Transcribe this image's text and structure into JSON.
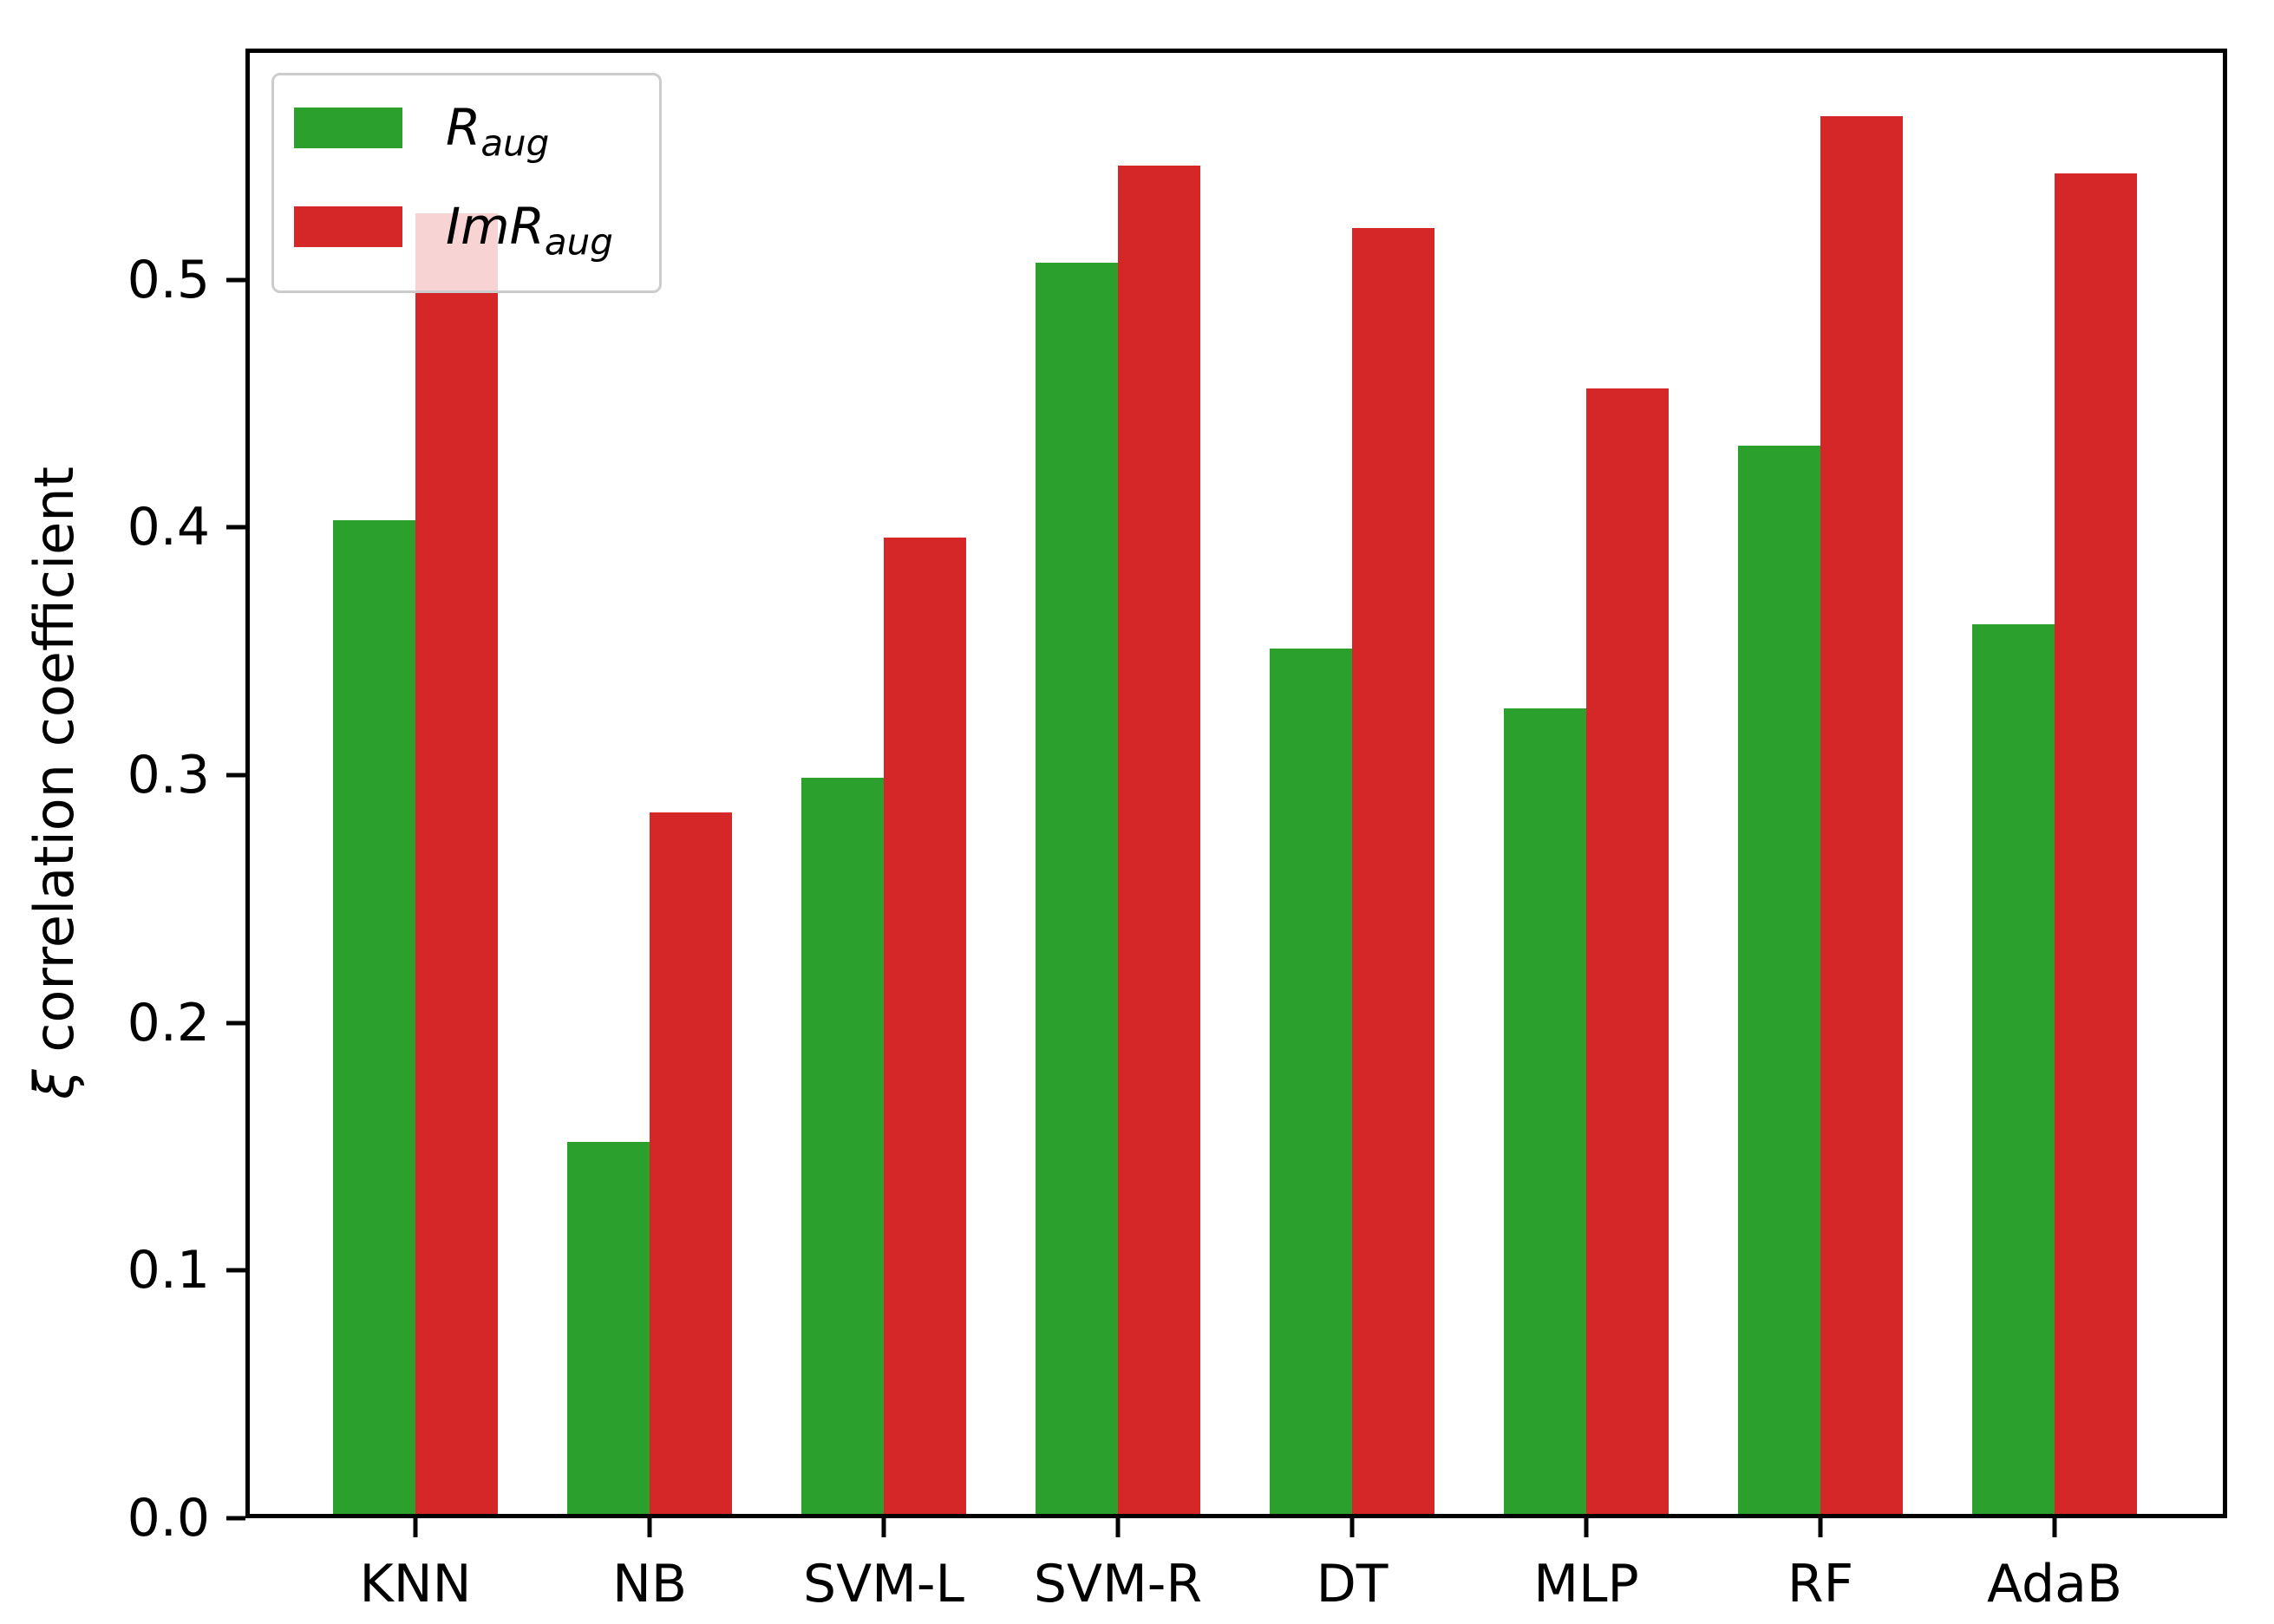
{
  "chart_data": {
    "type": "bar",
    "categories": [
      "KNN",
      "NB",
      "SVM-L",
      "SVM-R",
      "DT",
      "MLP",
      "RF",
      "AdaB"
    ],
    "series": [
      {
        "name": "R_aug",
        "label_main": "R",
        "label_sub": "aug",
        "color": "#2ca02c",
        "values": [
          0.403,
          0.152,
          0.299,
          0.507,
          0.351,
          0.327,
          0.433,
          0.361
        ]
      },
      {
        "name": "ImR_aug",
        "label_main": "ImR",
        "label_sub": "aug",
        "color": "#d62728",
        "values": [
          0.527,
          0.285,
          0.396,
          0.546,
          0.521,
          0.456,
          0.566,
          0.543
        ]
      }
    ],
    "title": "",
    "xlabel": "",
    "ylabel_italic": "ξ",
    "ylabel_text": " correlation coefficient",
    "yticks": [
      "0.0",
      "0.1",
      "0.2",
      "0.3",
      "0.4",
      "0.5"
    ],
    "ylim": [
      0,
      0.593
    ],
    "grid": false,
    "legend_position": "upper left",
    "colors": {
      "bar_green": "#2ca02c",
      "bar_red": "#d62728",
      "axis": "#000000",
      "legend_edge": "#cccccc"
    }
  }
}
